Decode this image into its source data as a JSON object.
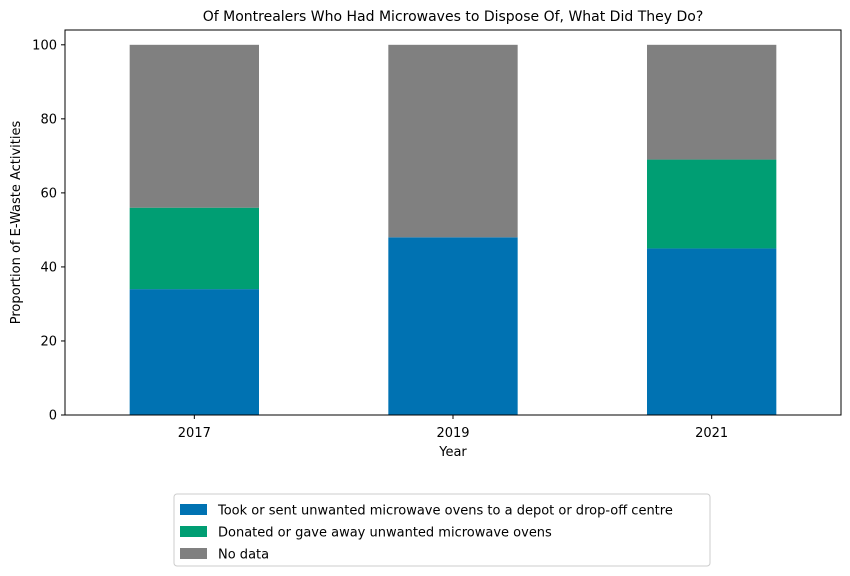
{
  "chart_data": {
    "type": "bar",
    "stacked": true,
    "title": "Of Montrealers Who Had Microwaves to Dispose Of, What Did They Do?",
    "xlabel": "Year",
    "ylabel": "Proportion of E-Waste Activities",
    "categories": [
      "2017",
      "2019",
      "2021"
    ],
    "ylim": [
      0,
      104
    ],
    "yticks": [
      0,
      20,
      40,
      60,
      80,
      100
    ],
    "grid": false,
    "legend_position": "bottom-center",
    "series": [
      {
        "name": "Took or sent unwanted microwave ovens to a depot or drop-off centre",
        "color": "#0072b2",
        "values": [
          34,
          48,
          45
        ]
      },
      {
        "name": "Donated or gave away unwanted microwave ovens",
        "color": "#009e73",
        "values": [
          22,
          0,
          24
        ]
      },
      {
        "name": "No data",
        "color": "#808080",
        "values": [
          44,
          52,
          31
        ]
      }
    ]
  }
}
